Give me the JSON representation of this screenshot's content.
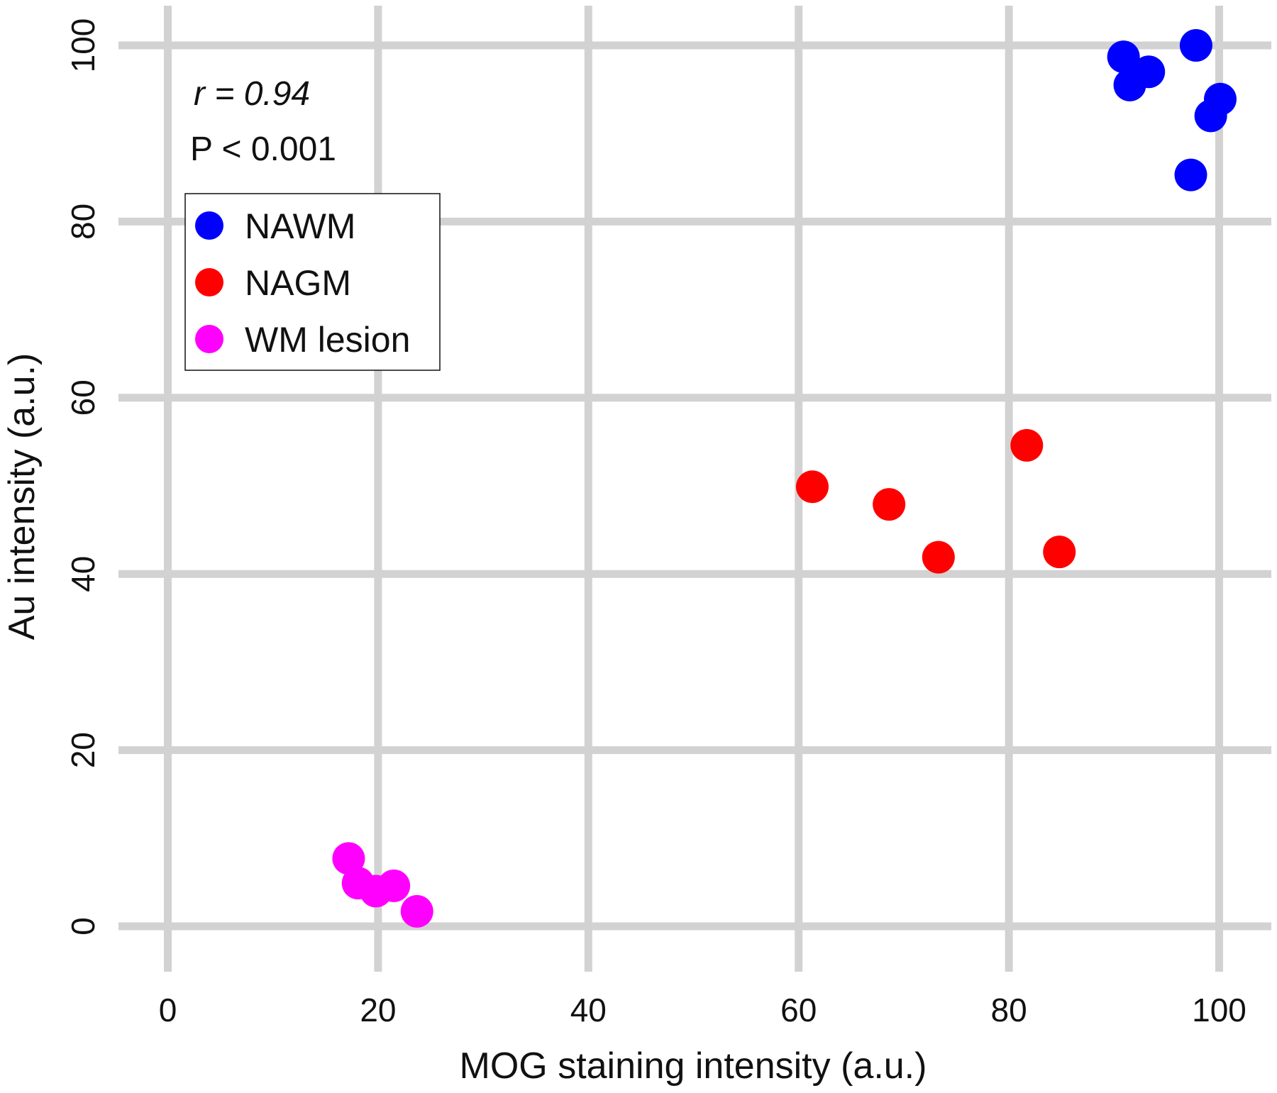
{
  "chart_data": {
    "type": "scatter",
    "xlabel": "MOG staining intensity (a.u.)",
    "ylabel": "Au intensity (a.u.)",
    "xlim": [
      0,
      100
    ],
    "ylim": [
      0,
      100
    ],
    "xticks": [
      "0",
      "20",
      "40",
      "60",
      "80",
      "100"
    ],
    "yticks": [
      "0",
      "20",
      "40",
      "60",
      "80",
      "100"
    ],
    "grid": true,
    "legend_position": "top-left",
    "annotations": {
      "r": "r = 0.94",
      "p": "P < 0.001"
    },
    "series": [
      {
        "name": "NAWM",
        "color": "#0000ff",
        "points": [
          [
            90.9,
            98.7
          ],
          [
            91.5,
            95.5
          ],
          [
            93.3,
            97.0
          ],
          [
            97.8,
            100.0
          ],
          [
            100.1,
            93.9
          ],
          [
            99.2,
            92.0
          ],
          [
            97.3,
            85.3
          ]
        ]
      },
      {
        "name": "NAGM",
        "color": "#ff0000",
        "points": [
          [
            61.3,
            49.9
          ],
          [
            68.6,
            47.9
          ],
          [
            73.3,
            41.9
          ],
          [
            81.7,
            54.6
          ],
          [
            84.8,
            42.5
          ]
        ]
      },
      {
        "name": "WM lesion",
        "color": "#ff00ff",
        "points": [
          [
            17.2,
            7.7
          ],
          [
            18.1,
            4.9
          ],
          [
            19.8,
            4.0
          ],
          [
            21.5,
            4.6
          ],
          [
            23.7,
            1.7
          ]
        ]
      }
    ]
  }
}
